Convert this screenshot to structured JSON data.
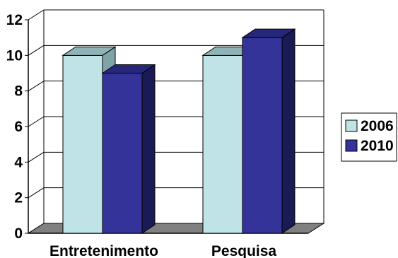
{
  "chart_data": {
    "type": "bar",
    "categories": [
      "Entretenimento",
      "Pesquisa"
    ],
    "series": [
      {
        "name": "2006",
        "values": [
          10,
          10
        ],
        "color": "#BFE3E6",
        "side_color": "#7FA3A6",
        "top_color": "#8FB4B8"
      },
      {
        "name": "2010",
        "values": [
          9,
          11
        ],
        "color": "#333399",
        "side_color": "#1A1A55",
        "top_color": "#26267A"
      }
    ],
    "ylim": [
      0,
      12
    ],
    "yticks": [
      "0",
      "2",
      "4",
      "6",
      "8",
      "10",
      "12"
    ],
    "grid": true,
    "legend_position": "right",
    "floor_color": "#808080"
  }
}
